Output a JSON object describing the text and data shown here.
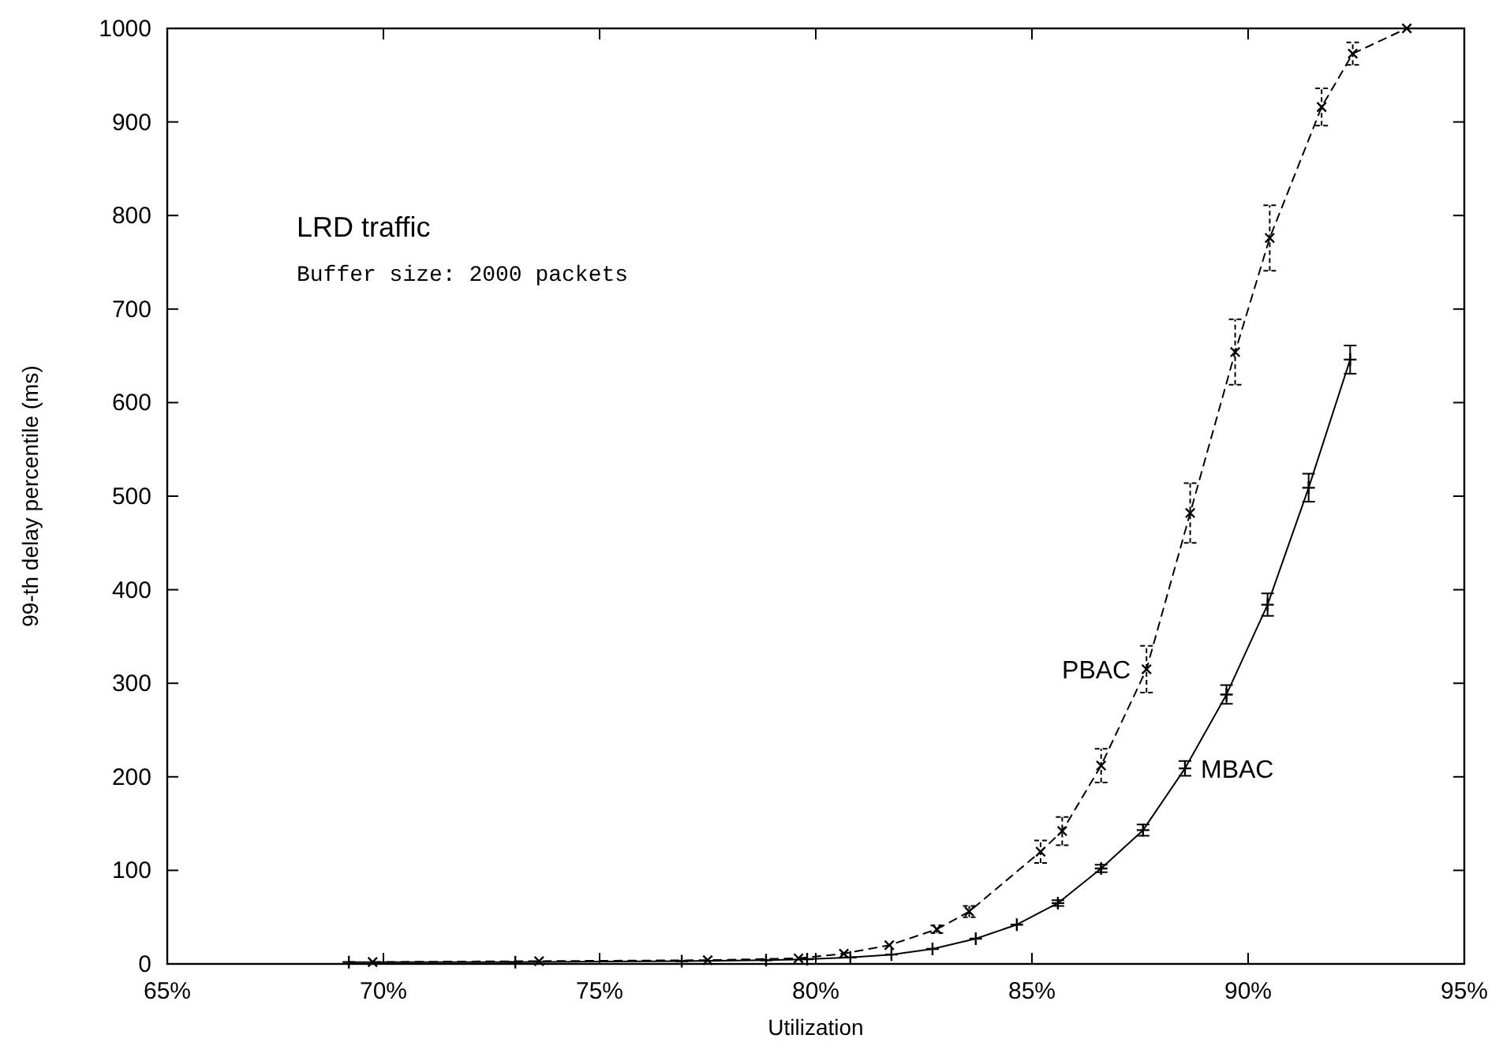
{
  "chart_data": {
    "type": "line",
    "xlabel": "Utilization",
    "ylabel": "99-th delay percentile (ms)",
    "annotations": [
      "LRD traffic",
      "Buffer size: 2000 packets"
    ],
    "xlim": [
      65,
      95
    ],
    "xticks": [
      {
        "value": 65,
        "label": "65%"
      },
      {
        "value": 70,
        "label": "70%"
      },
      {
        "value": 75,
        "label": "75%"
      },
      {
        "value": 80,
        "label": "80%"
      },
      {
        "value": 85,
        "label": "85%"
      },
      {
        "value": 90,
        "label": "90%"
      },
      {
        "value": 95,
        "label": "95%"
      }
    ],
    "ylim": [
      0,
      1000
    ],
    "yticks": [
      0,
      100,
      200,
      300,
      400,
      500,
      600,
      700,
      800,
      900,
      1000
    ],
    "grid": false,
    "series": [
      {
        "name": "MBAC",
        "color": "#000000",
        "marker": "cross",
        "line_style": "solid",
        "x": [
          69.2,
          73.05,
          76.9,
          78.85,
          79.8,
          80.8,
          81.75,
          82.7,
          83.7,
          84.65,
          85.6,
          86.6,
          87.57,
          88.54,
          89.5,
          90.45,
          91.4,
          92.36
        ],
        "values": [
          2,
          2,
          3,
          4,
          5,
          7,
          10,
          16,
          27,
          42,
          65,
          102,
          143,
          209,
          288,
          384,
          509,
          646
        ],
        "errors": [
          null,
          null,
          null,
          null,
          null,
          null,
          null,
          null,
          null,
          null,
          3,
          4,
          6,
          8,
          10,
          12,
          15,
          15
        ]
      },
      {
        "name": "PBAC",
        "color": "#000000",
        "marker": "cross",
        "line_style": "dashed",
        "x": [
          69.75,
          73.6,
          77.5,
          79.6,
          80.65,
          81.7,
          82.8,
          83.55,
          85.2,
          85.7,
          86.6,
          87.65,
          88.66,
          89.7,
          90.5,
          91.7,
          92.42,
          93.67
        ],
        "values": [
          2,
          3,
          4,
          6,
          11,
          20,
          37,
          56,
          120,
          142,
          212,
          315,
          482,
          654,
          776,
          916,
          973,
          1000
        ],
        "errors": [
          null,
          null,
          null,
          null,
          null,
          null,
          4,
          6,
          12,
          15,
          18,
          25,
          32,
          35,
          35,
          20,
          12,
          null
        ]
      }
    ]
  }
}
